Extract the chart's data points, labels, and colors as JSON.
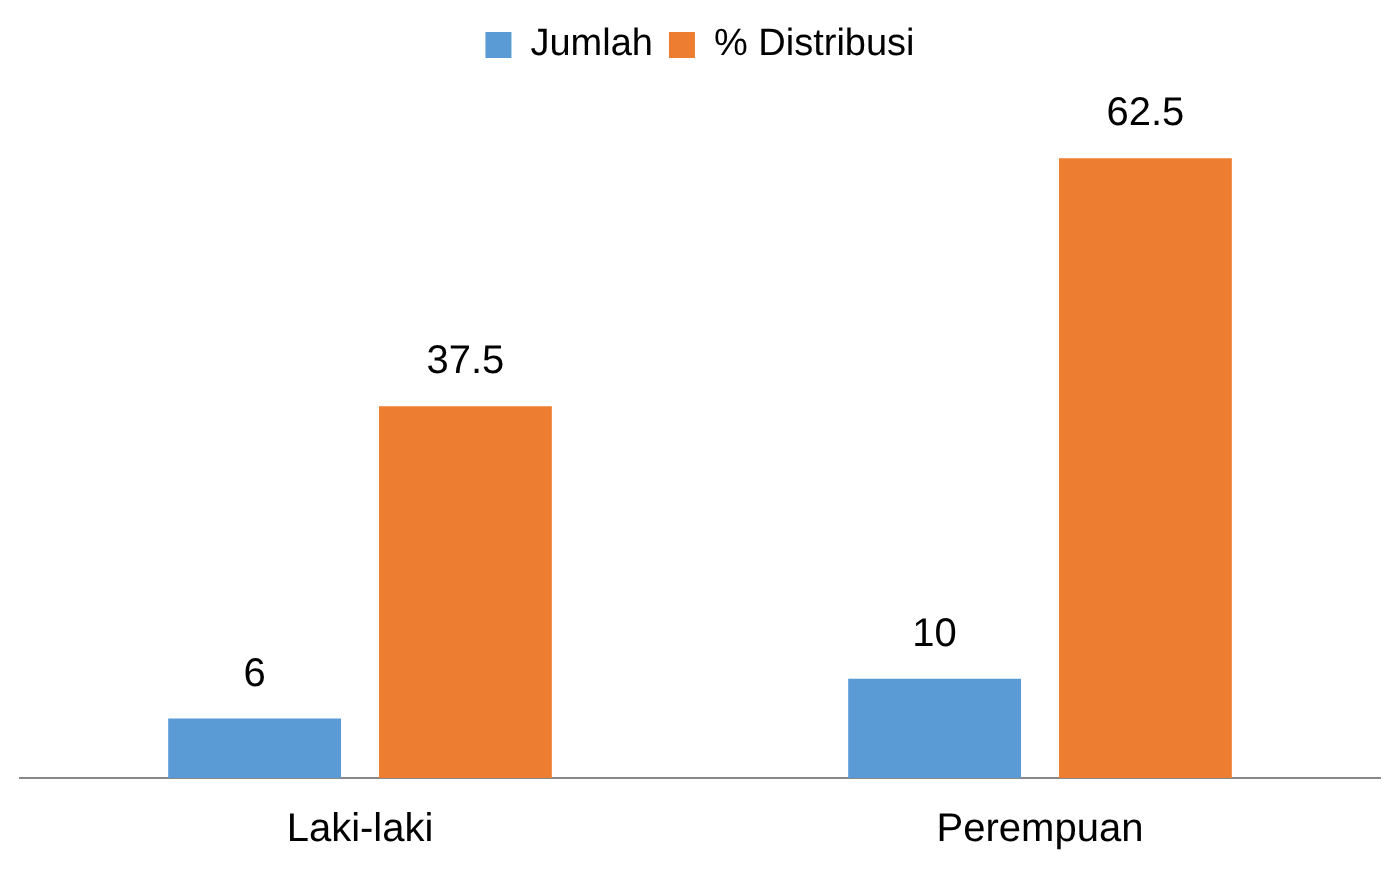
{
  "chart_data": {
    "type": "bar",
    "categories": [
      "Laki-laki",
      "Perempuan"
    ],
    "series": [
      {
        "name": "Jumlah",
        "color": "#5b9bd5",
        "values": [
          6,
          10
        ]
      },
      {
        "name": "% Distribusi",
        "color": "#ed7d31",
        "values": [
          37.5,
          62.5
        ]
      }
    ],
    "data_labels": true,
    "legend": "top",
    "grid": false
  }
}
